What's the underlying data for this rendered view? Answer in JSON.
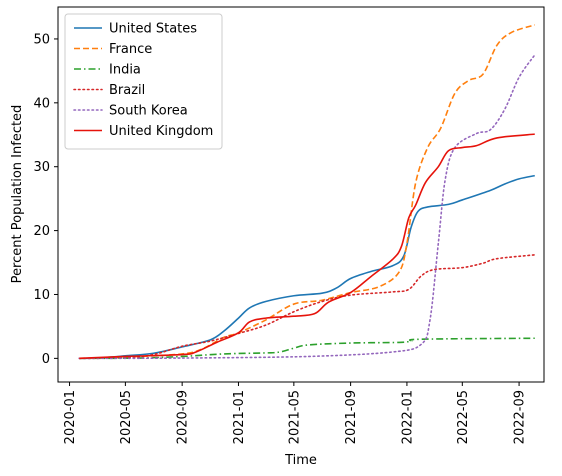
{
  "chart_data": {
    "type": "line",
    "title": "",
    "xlabel": "Time",
    "ylabel": "Percent Population Infected",
    "xlim": [
      "2019-12-07",
      "2022-10-25"
    ],
    "ylim": [
      -3.7,
      55
    ],
    "xticks": [
      "2020-01",
      "2020-05",
      "2020-09",
      "2021-01",
      "2021-05",
      "2021-09",
      "2022-01",
      "2022-05",
      "2022-09"
    ],
    "yticks": [
      0,
      10,
      20,
      30,
      40,
      50
    ],
    "grid": false,
    "legend_position": "top-left",
    "series": [
      {
        "name": "United States",
        "color": "#1f77b4",
        "style": "solid",
        "points": [
          [
            "2020-01-22",
            0
          ],
          [
            "2020-03-01",
            0.05
          ],
          [
            "2020-05-01",
            0.4
          ],
          [
            "2020-07-01",
            0.8
          ],
          [
            "2020-09-01",
            1.8
          ],
          [
            "2020-11-01",
            2.9
          ],
          [
            "2020-12-01",
            4.3
          ],
          [
            "2021-01-01",
            6.3
          ],
          [
            "2021-01-25",
            7.9
          ],
          [
            "2021-03-01",
            8.9
          ],
          [
            "2021-05-01",
            9.8
          ],
          [
            "2021-07-01",
            10.2
          ],
          [
            "2021-08-01",
            11.0
          ],
          [
            "2021-09-01",
            12.5
          ],
          [
            "2021-10-15",
            13.6
          ],
          [
            "2021-12-01",
            14.5
          ],
          [
            "2021-12-25",
            16.0
          ],
          [
            "2022-01-10",
            20.5
          ],
          [
            "2022-01-25",
            23.0
          ],
          [
            "2022-02-15",
            23.7
          ],
          [
            "2022-04-01",
            24.1
          ],
          [
            "2022-05-01",
            24.8
          ],
          [
            "2022-07-01",
            26.3
          ],
          [
            "2022-08-01",
            27.3
          ],
          [
            "2022-09-01",
            28.1
          ],
          [
            "2022-10-05",
            28.6
          ]
        ]
      },
      {
        "name": "France",
        "color": "#ff7f0e",
        "style": "dashed",
        "points": [
          [
            "2020-01-22",
            0
          ],
          [
            "2020-05-01",
            0.2
          ],
          [
            "2020-09-01",
            0.7
          ],
          [
            "2020-10-15",
            1.5
          ],
          [
            "2020-12-01",
            3.3
          ],
          [
            "2021-01-01",
            4.0
          ],
          [
            "2021-03-01",
            6.0
          ],
          [
            "2021-05-01",
            8.5
          ],
          [
            "2021-07-01",
            9.1
          ],
          [
            "2021-09-01",
            10.3
          ],
          [
            "2021-11-01",
            11.2
          ],
          [
            "2021-12-15",
            13.5
          ],
          [
            "2022-01-01",
            18.0
          ],
          [
            "2022-01-20",
            27.5
          ],
          [
            "2022-02-15",
            33.0
          ],
          [
            "2022-03-15",
            36.0
          ],
          [
            "2022-04-15",
            41.5
          ],
          [
            "2022-05-15",
            43.5
          ],
          [
            "2022-06-15",
            44.5
          ],
          [
            "2022-07-15",
            49.0
          ],
          [
            "2022-08-15",
            51.0
          ],
          [
            "2022-10-05",
            52.2
          ]
        ]
      },
      {
        "name": "India",
        "color": "#2ca02c",
        "style": "dashdot",
        "points": [
          [
            "2020-01-22",
            0
          ],
          [
            "2020-06-01",
            0.05
          ],
          [
            "2020-09-01",
            0.3
          ],
          [
            "2020-12-01",
            0.7
          ],
          [
            "2021-03-01",
            0.85
          ],
          [
            "2021-04-01",
            1.0
          ],
          [
            "2021-05-01",
            1.6
          ],
          [
            "2021-06-01",
            2.1
          ],
          [
            "2021-09-01",
            2.4
          ],
          [
            "2021-12-15",
            2.5
          ],
          [
            "2022-01-10",
            2.7
          ],
          [
            "2022-02-01",
            3.0
          ],
          [
            "2022-10-05",
            3.15
          ]
        ]
      },
      {
        "name": "Brazil",
        "color": "#d62728",
        "style": "dotted",
        "points": [
          [
            "2020-01-22",
            0
          ],
          [
            "2020-05-01",
            0.1
          ],
          [
            "2020-07-01",
            0.6
          ],
          [
            "2020-09-01",
            1.9
          ],
          [
            "2020-11-01",
            2.7
          ],
          [
            "2021-01-01",
            3.9
          ],
          [
            "2021-03-01",
            5.2
          ],
          [
            "2021-05-01",
            7.3
          ],
          [
            "2021-07-01",
            8.9
          ],
          [
            "2021-09-01",
            9.9
          ],
          [
            "2021-12-01",
            10.4
          ],
          [
            "2022-01-05",
            10.8
          ],
          [
            "2022-02-01",
            12.9
          ],
          [
            "2022-03-01",
            13.9
          ],
          [
            "2022-05-01",
            14.2
          ],
          [
            "2022-06-15",
            14.9
          ],
          [
            "2022-07-15",
            15.6
          ],
          [
            "2022-10-05",
            16.2
          ]
        ]
      },
      {
        "name": "South Korea",
        "color": "#9467bd",
        "style": "dotted",
        "points": [
          [
            "2020-01-22",
            0
          ],
          [
            "2020-09-01",
            0.05
          ],
          [
            "2021-06-01",
            0.3
          ],
          [
            "2021-12-01",
            1.0
          ],
          [
            "2022-02-01",
            2.2
          ],
          [
            "2022-02-20",
            6.0
          ],
          [
            "2022-03-10",
            18.0
          ],
          [
            "2022-03-25",
            28.0
          ],
          [
            "2022-04-15",
            33.0
          ],
          [
            "2022-06-01",
            35.2
          ],
          [
            "2022-07-01",
            35.8
          ],
          [
            "2022-08-01",
            39.0
          ],
          [
            "2022-09-01",
            44.0
          ],
          [
            "2022-10-05",
            47.5
          ]
        ]
      },
      {
        "name": "United Kingdom",
        "color": "#e6130b",
        "style": "solid",
        "points": [
          [
            "2020-01-22",
            0
          ],
          [
            "2020-05-01",
            0.3
          ],
          [
            "2020-09-01",
            0.6
          ],
          [
            "2020-10-01",
            1.0
          ],
          [
            "2020-11-15",
            2.5
          ],
          [
            "2021-01-01",
            4.0
          ],
          [
            "2021-01-25",
            5.7
          ],
          [
            "2021-03-01",
            6.3
          ],
          [
            "2021-05-01",
            6.6
          ],
          [
            "2021-06-15",
            7.0
          ],
          [
            "2021-07-15",
            8.8
          ],
          [
            "2021-09-01",
            10.3
          ],
          [
            "2021-10-15",
            12.8
          ],
          [
            "2021-12-01",
            15.5
          ],
          [
            "2021-12-20",
            17.5
          ],
          [
            "2022-01-05",
            22.0
          ],
          [
            "2022-01-20",
            24.0
          ],
          [
            "2022-02-10",
            27.5
          ],
          [
            "2022-03-10",
            30.0
          ],
          [
            "2022-04-01",
            32.5
          ],
          [
            "2022-05-01",
            33.0
          ],
          [
            "2022-06-01",
            33.3
          ],
          [
            "2022-07-15",
            34.5
          ],
          [
            "2022-10-05",
            35.1
          ]
        ]
      }
    ]
  }
}
